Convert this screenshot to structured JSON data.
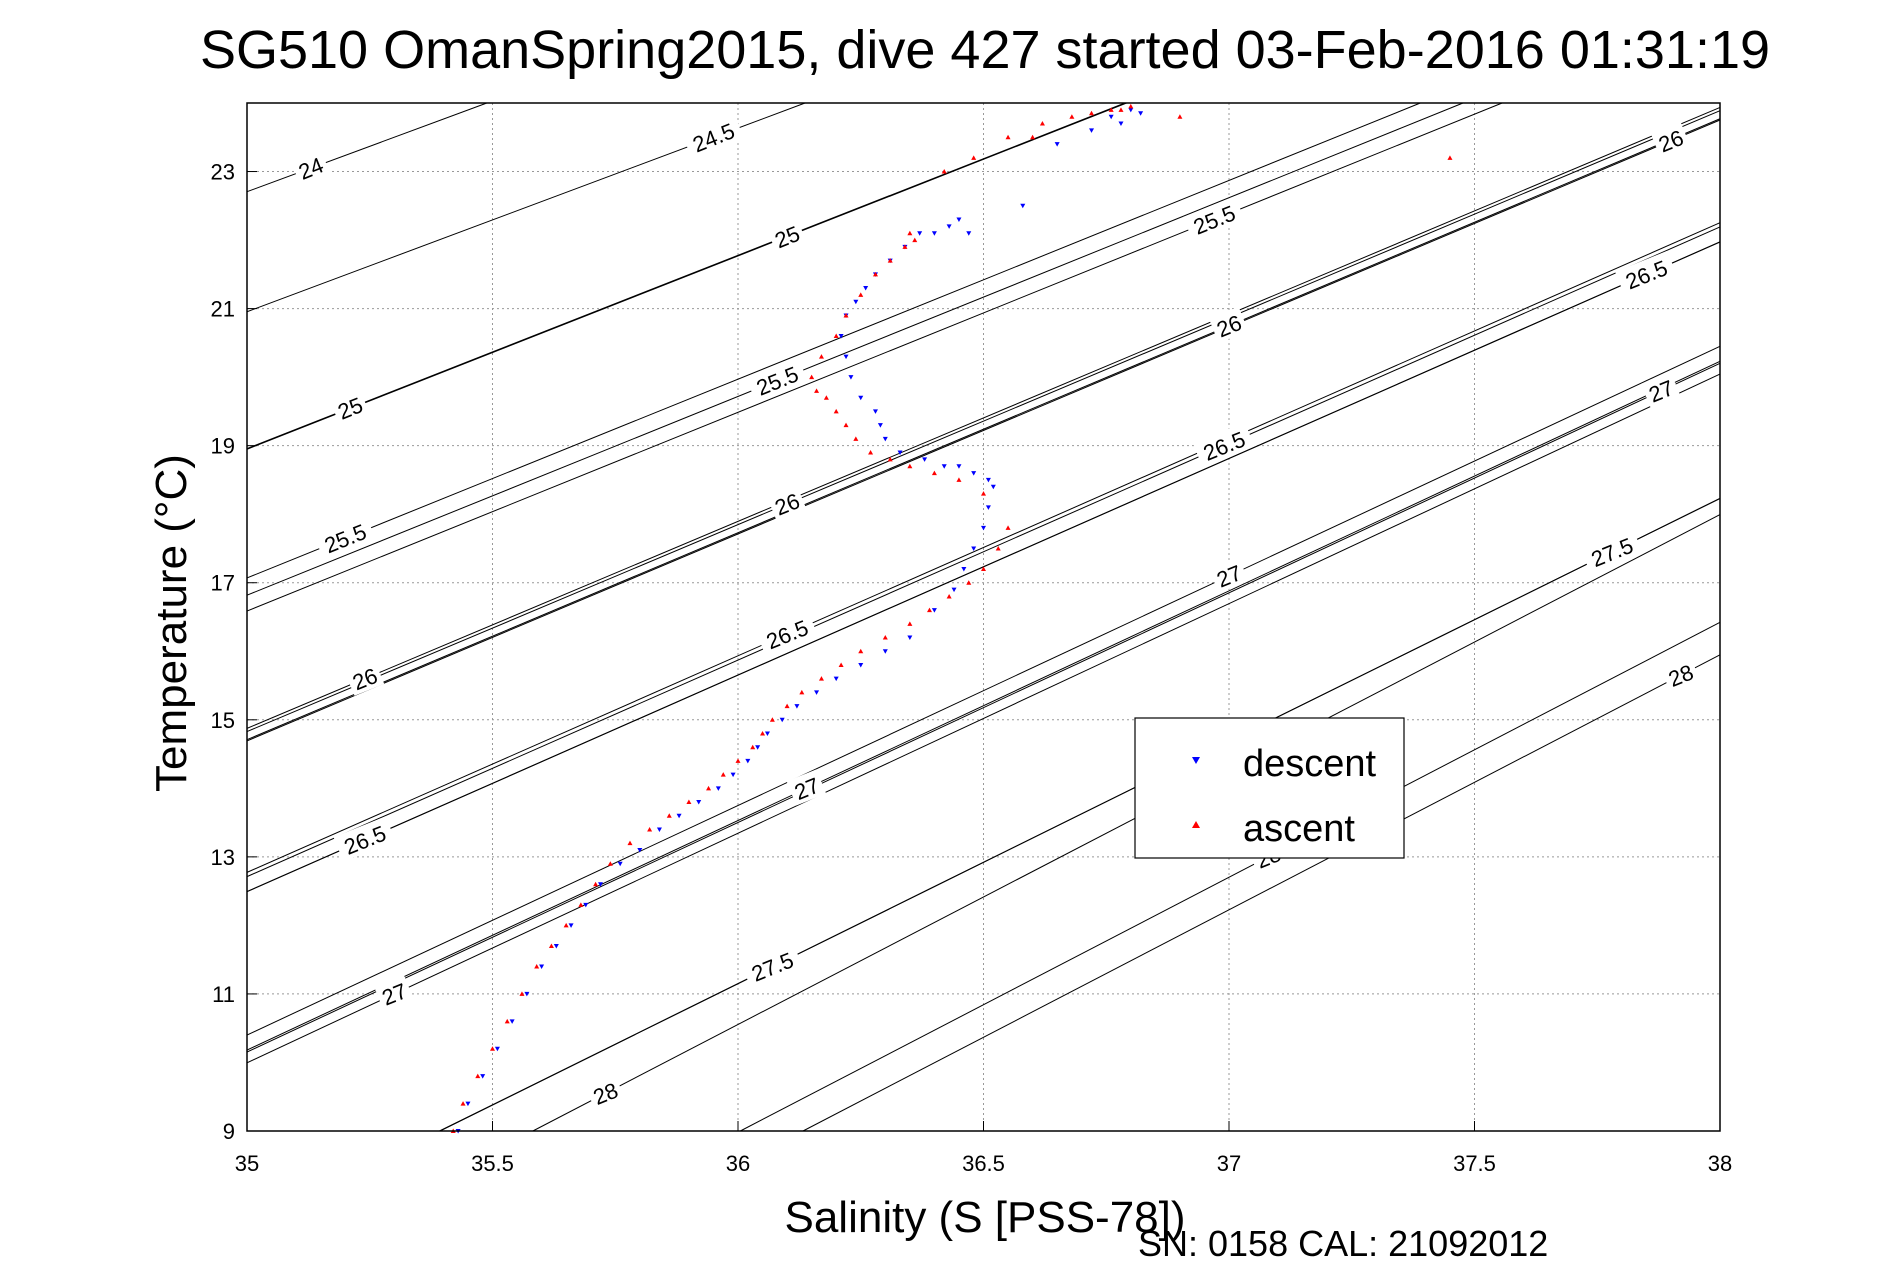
{
  "chart_data": {
    "type": "scatter",
    "title": "SG510 OmanSpring2015, dive 427 started 03-Feb-2016 01:31:19",
    "xlabel": "Salinity (S [PSS-78])",
    "ylabel": "Temperature (°C)",
    "xlim": [
      35,
      38
    ],
    "ylim": [
      9,
      24
    ],
    "x_ticks": [
      35,
      35.5,
      36,
      36.5,
      37,
      37.5,
      38
    ],
    "x_tick_labels": [
      "35",
      "35.5",
      "36",
      "36.5",
      "37",
      "37.5",
      "38"
    ],
    "y_ticks": [
      9,
      11,
      13,
      15,
      17,
      19,
      21,
      23
    ],
    "y_tick_labels": [
      "9",
      "11",
      "13",
      "15",
      "17",
      "19",
      "21",
      "23"
    ],
    "grid": true,
    "legend_position": "center-right",
    "footer": "SN: 0158  CAL: 21092012",
    "density_contours": {
      "levels": [
        24,
        24.5,
        25,
        25.5,
        26,
        26.5,
        27,
        27.5,
        28
      ],
      "labels": [
        {
          "text": "24",
          "s": 35.13,
          "t": 23.05
        },
        {
          "text": "24.5",
          "s": 35.95,
          "t": 23.5
        },
        {
          "text": "25",
          "s": 35.21,
          "t": 19.55
        },
        {
          "text": "25",
          "s": 36.1,
          "t": 22.05
        },
        {
          "text": "25.5",
          "s": 35.2,
          "t": 17.65
        },
        {
          "text": "25.5",
          "s": 36.08,
          "t": 19.95
        },
        {
          "text": "25.5",
          "s": 36.97,
          "t": 22.3
        },
        {
          "text": "26",
          "s": 35.24,
          "t": 15.6
        },
        {
          "text": "26",
          "s": 36.1,
          "t": 18.15
        },
        {
          "text": "26",
          "s": 37.0,
          "t": 20.75
        },
        {
          "text": "26",
          "s": 37.9,
          "t": 23.45
        },
        {
          "text": "26.5",
          "s": 35.24,
          "t": 13.25
        },
        {
          "text": "26.5",
          "s": 36.1,
          "t": 16.25
        },
        {
          "text": "26.5",
          "s": 36.99,
          "t": 19.0
        },
        {
          "text": "26.5",
          "s": 37.85,
          "t": 21.5
        },
        {
          "text": "27",
          "s": 35.3,
          "t": 11.0
        },
        {
          "text": "27",
          "s": 36.14,
          "t": 14.0
        },
        {
          "text": "27",
          "s": 37.0,
          "t": 17.1
        },
        {
          "text": "27",
          "s": 37.88,
          "t": 19.8
        },
        {
          "text": "27.5",
          "s": 36.07,
          "t": 11.4
        },
        {
          "text": "27.5",
          "s": 37.78,
          "t": 17.45
        },
        {
          "text": "28",
          "s": 35.73,
          "t": 9.55
        },
        {
          "text": "28",
          "s": 37.08,
          "t": 13.0
        },
        {
          "text": "28",
          "s": 37.92,
          "t": 15.65
        }
      ]
    },
    "series": [
      {
        "name": "descent",
        "color": "#0000ff",
        "marker": "triangle-down",
        "x": [
          35.43,
          35.45,
          35.48,
          35.51,
          35.54,
          35.57,
          35.6,
          35.63,
          35.66,
          35.69,
          35.72,
          35.76,
          35.8,
          35.84,
          35.88,
          35.92,
          35.96,
          35.99,
          36.02,
          36.04,
          36.06,
          36.09,
          36.12,
          36.16,
          36.2,
          36.25,
          36.3,
          36.35,
          36.4,
          36.44,
          36.46,
          36.48,
          36.5,
          36.51,
          36.52,
          36.51,
          36.48,
          36.45,
          36.42,
          36.38,
          36.33,
          36.3,
          36.29,
          36.28,
          36.25,
          36.23,
          36.22,
          36.21,
          36.22,
          36.24,
          36.26,
          36.28,
          36.31,
          36.34,
          36.37,
          36.4,
          36.43,
          36.45,
          36.47,
          36.58,
          36.65,
          36.72,
          36.76,
          36.8,
          36.82,
          36.78
        ],
        "y": [
          9.0,
          9.4,
          9.8,
          10.2,
          10.6,
          11.0,
          11.4,
          11.7,
          12.0,
          12.3,
          12.6,
          12.9,
          13.1,
          13.4,
          13.6,
          13.8,
          14.0,
          14.2,
          14.4,
          14.6,
          14.8,
          15.0,
          15.2,
          15.4,
          15.6,
          15.8,
          16.0,
          16.2,
          16.6,
          16.9,
          17.2,
          17.5,
          17.8,
          18.1,
          18.4,
          18.5,
          18.6,
          18.7,
          18.7,
          18.8,
          18.9,
          19.1,
          19.3,
          19.5,
          19.7,
          20.0,
          20.3,
          20.6,
          20.9,
          21.1,
          21.3,
          21.5,
          21.7,
          21.9,
          22.1,
          22.1,
          22.2,
          22.3,
          22.1,
          22.5,
          23.4,
          23.6,
          23.8,
          23.9,
          23.85,
          23.7
        ]
      },
      {
        "name": "ascent",
        "color": "#ff0000",
        "marker": "triangle-up",
        "x": [
          35.42,
          35.44,
          35.47,
          35.5,
          35.53,
          35.56,
          35.59,
          35.62,
          35.65,
          35.68,
          35.71,
          35.74,
          35.78,
          35.82,
          35.86,
          35.9,
          35.94,
          35.97,
          36.0,
          36.03,
          36.05,
          36.07,
          36.1,
          36.13,
          36.17,
          36.21,
          36.25,
          36.3,
          36.35,
          36.39,
          36.43,
          36.47,
          36.5,
          36.53,
          36.55,
          36.5,
          36.45,
          36.4,
          36.35,
          36.31,
          36.27,
          36.24,
          36.22,
          36.2,
          36.18,
          36.16,
          36.15,
          36.17,
          36.2,
          36.22,
          36.25,
          36.28,
          36.31,
          36.34,
          36.36,
          36.35,
          36.48,
          36.55,
          36.62,
          36.68,
          36.72,
          36.76,
          36.8,
          36.78,
          36.9,
          36.6,
          37.45,
          36.42
        ],
        "y": [
          9.0,
          9.4,
          9.8,
          10.2,
          10.6,
          11.0,
          11.4,
          11.7,
          12.0,
          12.3,
          12.6,
          12.9,
          13.2,
          13.4,
          13.6,
          13.8,
          14.0,
          14.2,
          14.4,
          14.6,
          14.8,
          15.0,
          15.2,
          15.4,
          15.6,
          15.8,
          16.0,
          16.2,
          16.4,
          16.6,
          16.8,
          17.0,
          17.2,
          17.5,
          17.8,
          18.3,
          18.5,
          18.6,
          18.7,
          18.8,
          18.9,
          19.1,
          19.3,
          19.5,
          19.7,
          19.8,
          20.0,
          20.3,
          20.6,
          20.9,
          21.2,
          21.5,
          21.7,
          21.9,
          22.0,
          22.1,
          23.2,
          23.5,
          23.7,
          23.8,
          23.85,
          23.9,
          23.95,
          23.9,
          23.8,
          23.5,
          23.2,
          23.0
        ]
      }
    ]
  }
}
